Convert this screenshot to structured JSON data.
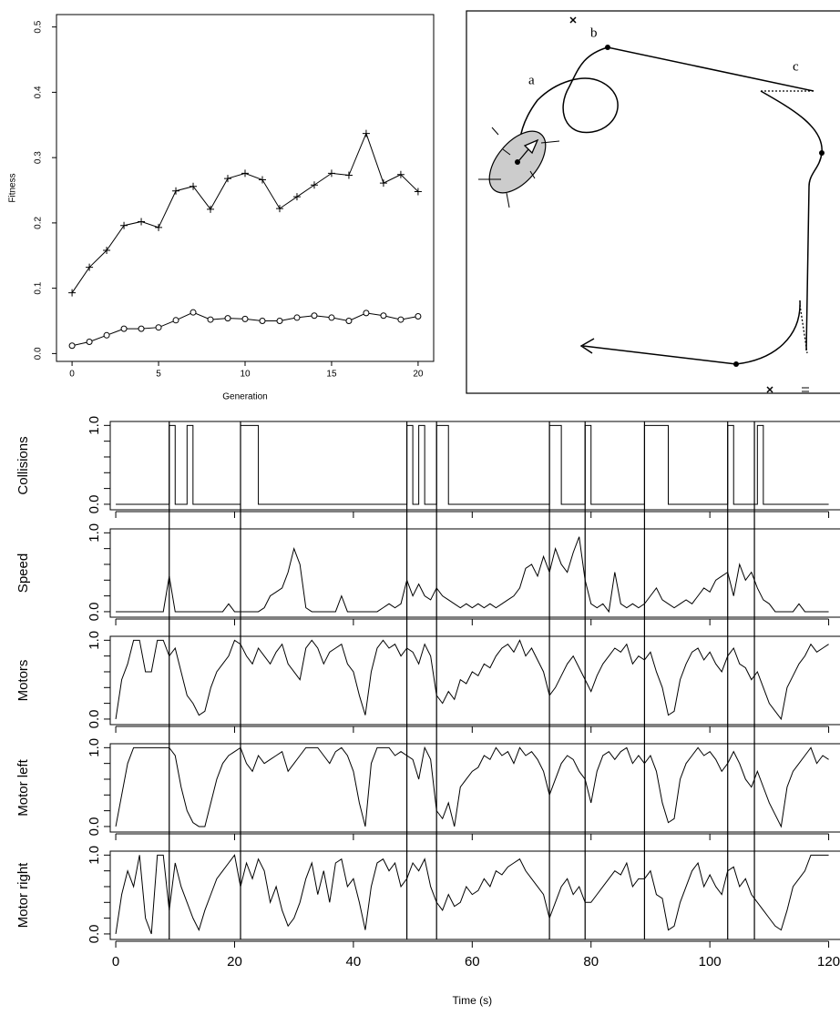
{
  "chart_data": [
    {
      "type": "line",
      "x_label": "Generation",
      "y_label": "Fitness",
      "x": [
        0,
        1,
        2,
        3,
        4,
        5,
        6,
        7,
        8,
        9,
        10,
        11,
        12,
        13,
        14,
        15,
        16,
        17,
        18,
        19,
        20
      ],
      "series": [
        {
          "marker": "plus",
          "color": "#000000",
          "values": [
            0.093,
            0.132,
            0.158,
            0.196,
            0.202,
            0.193,
            0.249,
            0.256,
            0.221,
            0.268,
            0.276,
            0.266,
            0.222,
            0.24,
            0.258,
            0.276,
            0.273,
            0.337,
            0.261,
            0.274,
            0.248
          ]
        },
        {
          "marker": "circle",
          "color": "#000000",
          "values": [
            0.012,
            0.018,
            0.028,
            0.038,
            0.038,
            0.04,
            0.051,
            0.063,
            0.052,
            0.054,
            0.053,
            0.05,
            0.05,
            0.055,
            0.058,
            0.055,
            0.05,
            0.062,
            0.058,
            0.052,
            0.057
          ]
        }
      ],
      "xlim": [
        -0.9,
        20.9
      ],
      "ylim": [
        -0.012,
        0.519
      ],
      "xticks": [
        0,
        5,
        10,
        15,
        20
      ],
      "yticks": [
        {
          "value": 0,
          "label": "0.0"
        },
        0.1,
        0.2,
        0.3,
        0.4,
        0.5
      ]
    },
    {
      "type": "trajectory",
      "annotations": [
        "a",
        "b",
        "c"
      ]
    },
    {
      "type": "panels",
      "x_label": "Time (s)",
      "xlim": [
        -0.93,
        123.9
      ],
      "ylim": [
        -0.07,
        1.05
      ],
      "xticks": [
        0,
        20,
        40,
        60,
        80,
        100,
        120
      ],
      "yticks": [
        {
          "value": 0,
          "label": "0.0"
        },
        {
          "value": 1,
          "label": "1.0"
        }
      ],
      "yminor": [
        0.2,
        0.4,
        0.6,
        0.8
      ],
      "events": [
        9,
        21,
        49,
        54,
        73,
        79,
        89,
        103,
        107.5
      ],
      "x": [
        0,
        1,
        2,
        3,
        4,
        5,
        6,
        7,
        8,
        9,
        10,
        11,
        12,
        13,
        14,
        15,
        16,
        17,
        18,
        19,
        20,
        21,
        22,
        23,
        24,
        25,
        26,
        27,
        28,
        29,
        30,
        31,
        32,
        33,
        34,
        35,
        36,
        37,
        38,
        39,
        40,
        41,
        42,
        43,
        44,
        45,
        46,
        47,
        48,
        49,
        50,
        51,
        52,
        53,
        54,
        55,
        56,
        57,
        58,
        59,
        60,
        61,
        62,
        63,
        64,
        65,
        66,
        67,
        68,
        69,
        70,
        71,
        72,
        73,
        74,
        75,
        76,
        77,
        78,
        79,
        80,
        81,
        82,
        83,
        84,
        85,
        86,
        87,
        88,
        89,
        90,
        91,
        92,
        93,
        94,
        95,
        96,
        97,
        98,
        99,
        100,
        101,
        102,
        103,
        104,
        105,
        106,
        107,
        108,
        109,
        110,
        111,
        112,
        113,
        114,
        115,
        116,
        117,
        118,
        119,
        120
      ],
      "panels": [
        {
          "ylabel": "Collisions",
          "step": true,
          "values": [
            0,
            0,
            0,
            0,
            0,
            0,
            0,
            0,
            0,
            1,
            0,
            0,
            1,
            0,
            0,
            0,
            0,
            0,
            0,
            0,
            0,
            1,
            1,
            1,
            0,
            0,
            0,
            0,
            0,
            0,
            0,
            0,
            0,
            0,
            0,
            0,
            0,
            0,
            0,
            0,
            0,
            0,
            0,
            0,
            0,
            0,
            0,
            0,
            0,
            1,
            0,
            1,
            0,
            0,
            1,
            1,
            0,
            0,
            0,
            0,
            0,
            0,
            0,
            0,
            0,
            0,
            0,
            0,
            0,
            0,
            0,
            0,
            0,
            1,
            1,
            0,
            0,
            0,
            0,
            1,
            0,
            0,
            0,
            0,
            0,
            0,
            0,
            0,
            0,
            1,
            1,
            1,
            1,
            0,
            0,
            0,
            0,
            0,
            0,
            0,
            0,
            0,
            0,
            1,
            0,
            0,
            0,
            0,
            1,
            0,
            0,
            0,
            0,
            0,
            0,
            0,
            0,
            0,
            0,
            0,
            0
          ]
        },
        {
          "ylabel": "Speed",
          "values": [
            0,
            0,
            0,
            0,
            0,
            0,
            0,
            0,
            0,
            0.45,
            0,
            0,
            0,
            0,
            0,
            0,
            0,
            0,
            0,
            0.1,
            0,
            0,
            0,
            0,
            0,
            0.05,
            0.2,
            0.25,
            0.3,
            0.5,
            0.8,
            0.6,
            0.05,
            0,
            0,
            0,
            0,
            0,
            0.2,
            0,
            0,
            0,
            0,
            0,
            0,
            0.05,
            0.1,
            0.05,
            0.1,
            0.4,
            0.2,
            0.35,
            0.2,
            0.15,
            0.3,
            0.2,
            0.15,
            0.1,
            0.05,
            0.1,
            0.05,
            0.1,
            0.05,
            0.1,
            0.05,
            0.1,
            0.15,
            0.2,
            0.3,
            0.55,
            0.6,
            0.45,
            0.7,
            0.5,
            0.8,
            0.6,
            0.5,
            0.75,
            0.95,
            0.4,
            0.1,
            0.05,
            0.1,
            0,
            0.5,
            0.1,
            0.05,
            0.1,
            0.05,
            0.1,
            0.2,
            0.3,
            0.15,
            0.1,
            0.05,
            0.1,
            0.15,
            0.1,
            0.2,
            0.3,
            0.25,
            0.4,
            0.45,
            0.5,
            0.2,
            0.6,
            0.4,
            0.5,
            0.3,
            0.15,
            0.1,
            0,
            0,
            0,
            0,
            0.1,
            0,
            0,
            0,
            0,
            0
          ]
        },
        {
          "ylabel": "Motors",
          "values": [
            0,
            0.5,
            0.7,
            1,
            1,
            0.6,
            0.6,
            1,
            1,
            0.8,
            0.9,
            0.6,
            0.3,
            0.2,
            0.05,
            0.1,
            0.4,
            0.6,
            0.7,
            0.8,
            1,
            0.95,
            0.8,
            0.7,
            0.9,
            0.8,
            0.7,
            0.85,
            0.95,
            0.7,
            0.6,
            0.5,
            0.9,
            1,
            0.9,
            0.7,
            0.85,
            0.9,
            0.95,
            0.7,
            0.6,
            0.3,
            0.05,
            0.6,
            0.9,
            1,
            0.9,
            0.95,
            0.8,
            0.9,
            0.85,
            0.7,
            0.95,
            0.8,
            0.3,
            0.2,
            0.35,
            0.25,
            0.5,
            0.45,
            0.6,
            0.55,
            0.7,
            0.65,
            0.8,
            0.9,
            0.95,
            0.85,
            1,
            0.8,
            0.9,
            0.75,
            0.6,
            0.3,
            0.4,
            0.55,
            0.7,
            0.8,
            0.65,
            0.5,
            0.35,
            0.55,
            0.7,
            0.8,
            0.9,
            0.85,
            0.95,
            0.7,
            0.8,
            0.75,
            0.85,
            0.6,
            0.4,
            0.05,
            0.1,
            0.5,
            0.7,
            0.85,
            0.9,
            0.75,
            0.85,
            0.7,
            0.6,
            0.8,
            0.9,
            0.7,
            0.65,
            0.5,
            0.6,
            0.4,
            0.2,
            0.1,
            0,
            0.4,
            0.55,
            0.7,
            0.8,
            0.95,
            0.85,
            0.9,
            0.95
          ]
        },
        {
          "ylabel": "Motor left",
          "values": [
            0,
            0.4,
            0.8,
            1,
            1,
            1,
            1,
            1,
            1,
            1,
            0.9,
            0.5,
            0.2,
            0.05,
            0,
            0,
            0.3,
            0.6,
            0.8,
            0.9,
            0.95,
            1,
            0.8,
            0.7,
            0.9,
            0.8,
            0.85,
            0.9,
            0.95,
            0.7,
            0.8,
            0.9,
            1,
            1,
            1,
            0.9,
            0.8,
            0.95,
            1,
            0.9,
            0.7,
            0.3,
            0,
            0.8,
            1,
            1,
            1,
            0.9,
            0.95,
            0.9,
            0.85,
            0.6,
            1,
            0.85,
            0.2,
            0.1,
            0.3,
            0,
            0.5,
            0.6,
            0.7,
            0.75,
            0.9,
            0.85,
            1,
            0.9,
            0.95,
            0.8,
            1,
            0.9,
            0.95,
            0.85,
            0.7,
            0.4,
            0.6,
            0.8,
            0.9,
            0.85,
            0.7,
            0.6,
            0.3,
            0.7,
            0.9,
            0.95,
            0.85,
            0.95,
            1,
            0.8,
            0.9,
            0.8,
            0.9,
            0.7,
            0.3,
            0.05,
            0.1,
            0.6,
            0.8,
            0.9,
            1,
            0.9,
            0.95,
            0.85,
            0.7,
            0.8,
            0.95,
            0.8,
            0.6,
            0.5,
            0.7,
            0.5,
            0.3,
            0.15,
            0,
            0.5,
            0.7,
            0.8,
            0.9,
            1,
            0.8,
            0.9,
            0.85
          ]
        },
        {
          "ylabel": "Motor right",
          "values": [
            0,
            0.5,
            0.8,
            0.6,
            1,
            0.2,
            0,
            1,
            1,
            0.3,
            0.9,
            0.6,
            0.4,
            0.2,
            0.05,
            0.3,
            0.5,
            0.7,
            0.8,
            0.9,
            1,
            0.6,
            0.9,
            0.7,
            0.95,
            0.8,
            0.4,
            0.6,
            0.3,
            0.1,
            0.2,
            0.4,
            0.7,
            0.9,
            0.5,
            0.8,
            0.4,
            0.9,
            0.95,
            0.6,
            0.7,
            0.4,
            0.05,
            0.6,
            0.9,
            0.95,
            0.8,
            0.9,
            0.6,
            0.7,
            0.9,
            0.8,
            0.95,
            0.6,
            0.4,
            0.3,
            0.5,
            0.35,
            0.4,
            0.6,
            0.5,
            0.55,
            0.7,
            0.6,
            0.8,
            0.75,
            0.85,
            0.9,
            0.95,
            0.8,
            0.7,
            0.6,
            0.5,
            0.2,
            0.4,
            0.6,
            0.7,
            0.5,
            0.6,
            0.4,
            0.4,
            0.5,
            0.6,
            0.7,
            0.8,
            0.75,
            0.9,
            0.6,
            0.7,
            0.7,
            0.8,
            0.5,
            0.45,
            0.05,
            0.1,
            0.4,
            0.6,
            0.8,
            0.9,
            0.6,
            0.75,
            0.6,
            0.5,
            0.8,
            0.85,
            0.6,
            0.7,
            0.5,
            0.4,
            0.3,
            0.2,
            0.1,
            0.05,
            0.3,
            0.6,
            0.7,
            0.8,
            1,
            1,
            1,
            1
          ]
        }
      ]
    }
  ]
}
